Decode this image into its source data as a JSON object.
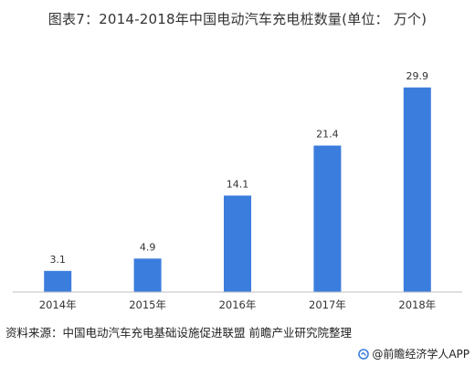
{
  "title": "图表7：2014-2018年中国电动汽车充电桩数量(单位：  万个)",
  "source": "资料来源：中国电动汽车充电基础设施促进联盟 前瞻产业研究院整理",
  "brand": "@前瞻经济学人APP",
  "colors": {
    "bar": "#3b7ddd",
    "axis": "#bfbfbf",
    "text": "#333333"
  },
  "chart_data": {
    "type": "bar",
    "title": "图表7：2014-2018年中国电动汽车充电桩数量(单位：  万个)",
    "categories": [
      "2014年",
      "2015年",
      "2016年",
      "2017年",
      "2018年"
    ],
    "values": [
      3.1,
      4.9,
      14.1,
      21.4,
      29.9
    ],
    "data_labels": [
      "3.1",
      "4.9",
      "14.1",
      "21.4",
      "29.9"
    ],
    "xlabel": "",
    "ylabel": "",
    "ylim": [
      0,
      32
    ],
    "grid": false,
    "legend": "none"
  }
}
